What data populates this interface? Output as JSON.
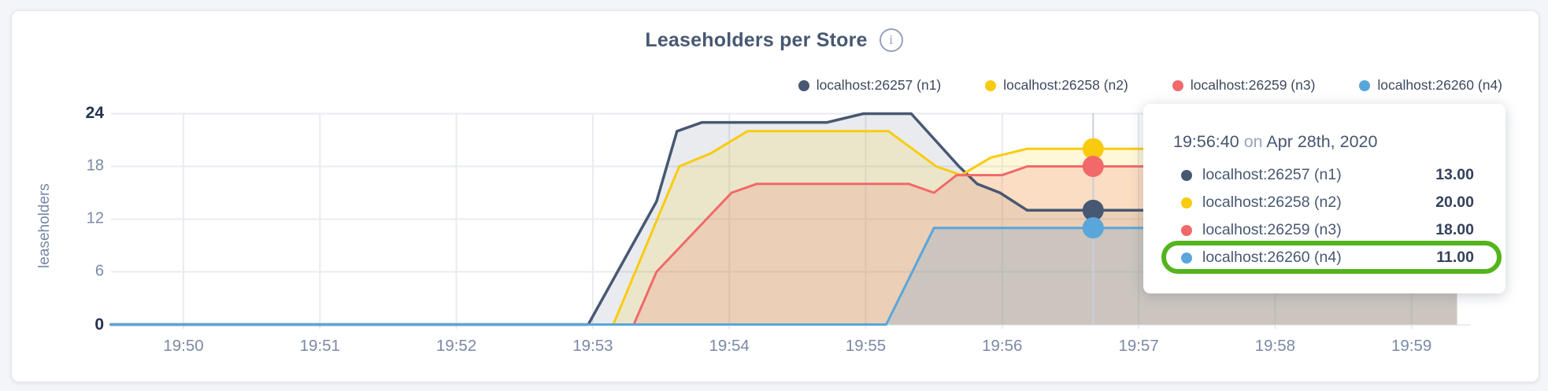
{
  "header": {
    "title": "Leaseholders per Store",
    "info_glyph": "i"
  },
  "y_axis": {
    "label": "leaseholders",
    "ticks": [
      {
        "label": "24",
        "value": 24,
        "emph": true
      },
      {
        "label": "18",
        "value": 18,
        "emph": false
      },
      {
        "label": "12",
        "value": 12,
        "emph": false
      },
      {
        "label": "6",
        "value": 6,
        "emph": false
      },
      {
        "label": "0",
        "value": 0,
        "emph": true
      }
    ]
  },
  "x_axis": {
    "ticks": [
      {
        "label": "19:50",
        "minute": 0
      },
      {
        "label": "19:51",
        "minute": 1
      },
      {
        "label": "19:52",
        "minute": 2
      },
      {
        "label": "19:53",
        "minute": 3
      },
      {
        "label": "19:54",
        "minute": 4
      },
      {
        "label": "19:55",
        "minute": 5
      },
      {
        "label": "19:56",
        "minute": 6
      },
      {
        "label": "19:57",
        "minute": 7
      },
      {
        "label": "19:58",
        "minute": 8
      },
      {
        "label": "19:59",
        "minute": 9
      }
    ]
  },
  "tooltip": {
    "time": "19:56:40",
    "conj": "on",
    "date": "Apr 28th, 2020",
    "highlight_row": 3,
    "highlight_color": "#53b41c"
  },
  "chart_data": {
    "type": "area",
    "title": "Leaseholders per Store",
    "ylabel": "leaseholders",
    "ylim": [
      0,
      24
    ],
    "grid": true,
    "legend_position": "top-right",
    "x_unit": "seconds since 19:50:00",
    "x_domain": [
      -32,
      560
    ],
    "x_tick_labels": [
      "19:50",
      "19:51",
      "19:52",
      "19:53",
      "19:54",
      "19:55",
      "19:56",
      "19:57",
      "19:58",
      "19:59"
    ],
    "hover": {
      "t": 400,
      "time_label": "19:56:40",
      "date_label": "Apr 28th, 2020"
    },
    "series": [
      {
        "name": "localhost:26257 (n1)",
        "color": "#475872",
        "fill_opacity": 0.12,
        "hover_value": "13.00",
        "points": [
          [
            -32,
            0
          ],
          [
            178,
            0
          ],
          [
            208,
            14
          ],
          [
            217,
            22
          ],
          [
            228,
            23
          ],
          [
            283,
            23
          ],
          [
            299,
            24
          ],
          [
            320,
            24
          ],
          [
            341,
            18
          ],
          [
            349,
            16
          ],
          [
            359,
            15
          ],
          [
            371,
            13
          ],
          [
            560,
            13
          ]
        ]
      },
      {
        "name": "localhost:26258 (n2)",
        "color": "#f9cb0f",
        "fill_opacity": 0.16,
        "hover_value": "20.00",
        "points": [
          [
            -32,
            0
          ],
          [
            189,
            0
          ],
          [
            218,
            18
          ],
          [
            232,
            19.5
          ],
          [
            248,
            22
          ],
          [
            310,
            22
          ],
          [
            331,
            18
          ],
          [
            342,
            17
          ],
          [
            355,
            19
          ],
          [
            371,
            20
          ],
          [
            560,
            20
          ]
        ]
      },
      {
        "name": "localhost:26259 (n3)",
        "color": "#f16969",
        "fill_opacity": 0.18,
        "hover_value": "18.00",
        "points": [
          [
            -32,
            0
          ],
          [
            198,
            0
          ],
          [
            208,
            6
          ],
          [
            230,
            12
          ],
          [
            241,
            15
          ],
          [
            252,
            16
          ],
          [
            319,
            16
          ],
          [
            330,
            15
          ],
          [
            340,
            17
          ],
          [
            360,
            17
          ],
          [
            371,
            18
          ],
          [
            560,
            18
          ]
        ]
      },
      {
        "name": "localhost:26260 (n4)",
        "color": "#59a6db",
        "fill_opacity": 0.22,
        "hover_value": "11.00",
        "points": [
          [
            -32,
            0
          ],
          [
            309,
            0
          ],
          [
            330,
            11
          ],
          [
            560,
            11
          ]
        ]
      }
    ]
  }
}
